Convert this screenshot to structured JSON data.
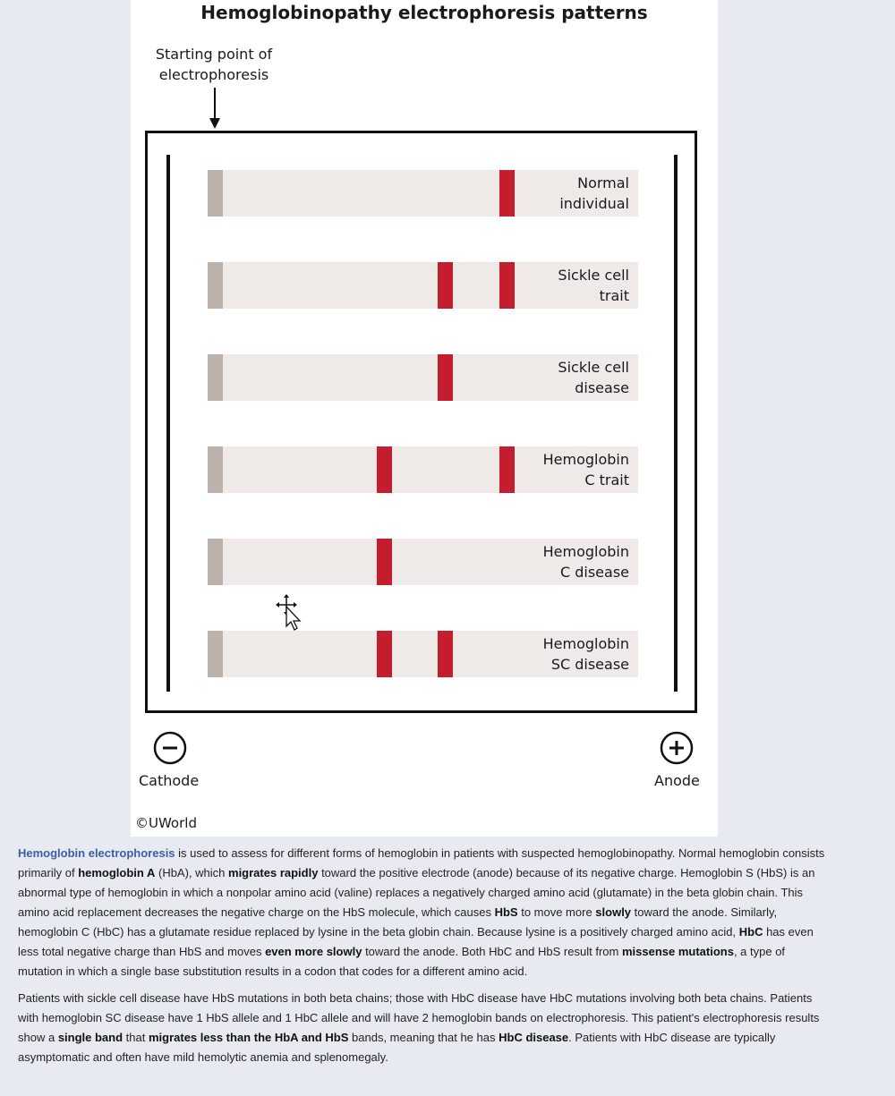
{
  "figure": {
    "title": "Hemoglobinopathy electrophoresis patterns",
    "start_label_line1": "Starting point of",
    "start_label_line2": "electrophoresis",
    "cathode_label": "Cathode",
    "anode_label": "Anode",
    "copyright": "©UWorld",
    "band_color": "#c41e2e",
    "well_color": "#bdb1ab",
    "lane_color": "#efeae8",
    "lanes": [
      {
        "label": "Normal\nindividual",
        "bands": [
          "HbA"
        ]
      },
      {
        "label": "Sickle cell\ntrait",
        "bands": [
          "HbS",
          "HbA"
        ]
      },
      {
        "label": "Sickle cell\ndisease",
        "bands": [
          "HbS"
        ]
      },
      {
        "label": "Hemoglobin\nC trait",
        "bands": [
          "HbC",
          "HbA"
        ]
      },
      {
        "label": "Hemoglobin\nC disease",
        "bands": [
          "HbC"
        ]
      },
      {
        "label": "Hemoglobin\nSC disease",
        "bands": [
          "HbC",
          "HbS"
        ]
      }
    ]
  },
  "explanation": {
    "p1": [
      {
        "t": "Hemoglobin electrophoresis",
        "s": "link"
      },
      {
        "t": " is used to assess for different forms of hemoglobin in patients with suspected hemoglobinopathy.  Normal hemoglobin consists primarily of "
      },
      {
        "t": "hemoglobin A",
        "s": "b"
      },
      {
        "t": " (HbA), which "
      },
      {
        "t": "migrates rapidly",
        "s": "b"
      },
      {
        "t": " toward the positive electrode (anode) because of its negative charge.  Hemoglobin S (HbS) is an abnormal type of hemoglobin in which a nonpolar amino acid (valine) replaces a negatively charged amino acid (glutamate) in the beta globin chain.  This amino acid replacement decreases the negative charge on the HbS molecule, which causes "
      },
      {
        "t": "HbS",
        "s": "b"
      },
      {
        "t": " to move more "
      },
      {
        "t": "slowly",
        "s": "b"
      },
      {
        "t": " toward the anode.  Similarly, hemoglobin C (HbC) has a glutamate residue replaced by lysine in the beta globin chain.  Because lysine is a positively charged amino acid, "
      },
      {
        "t": "HbC",
        "s": "b"
      },
      {
        "t": " has even less total negative charge than HbS and moves "
      },
      {
        "t": "even more slowly",
        "s": "b"
      },
      {
        "t": " toward the anode.  Both HbC and HbS result from "
      },
      {
        "t": "missense mutations",
        "s": "b"
      },
      {
        "t": ", a type of mutation in which a single base substitution results in a codon that codes for a different amino acid."
      }
    ],
    "p2": [
      {
        "t": "Patients with sickle cell disease have HbS mutations in both beta chains; those with HbC disease have HbC mutations involving both beta chains.  Patients with hemoglobin SC disease have 1 HbS allele and 1 HbC allele and will have 2 hemoglobin bands on electrophoresis.  This patient's electrophoresis results show a "
      },
      {
        "t": "single band",
        "s": "b"
      },
      {
        "t": " that "
      },
      {
        "t": "migrates less than the HbA and HbS",
        "s": "b"
      },
      {
        "t": " bands, meaning that he has "
      },
      {
        "t": "HbC disease",
        "s": "b"
      },
      {
        "t": ".  Patients with HbC disease are typically asymptomatic and often have mild hemolytic anemia and splenomegaly."
      }
    ]
  }
}
